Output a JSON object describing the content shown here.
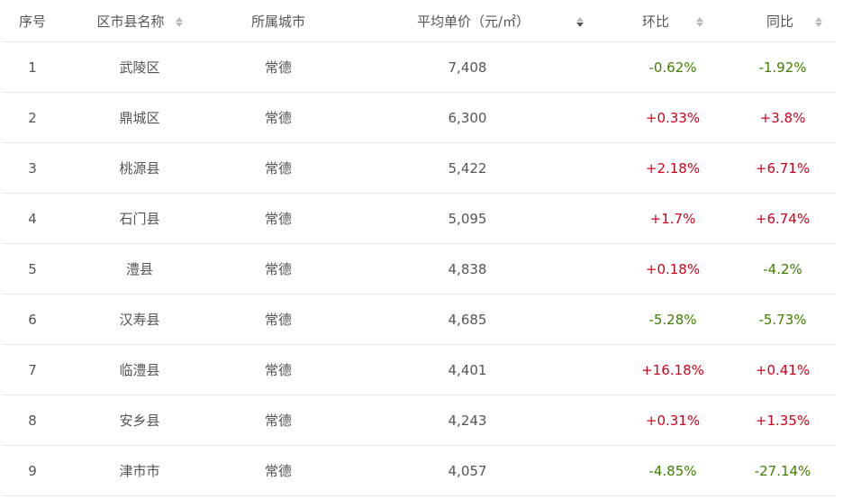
{
  "columns": [
    "序号",
    "区市县名称",
    "所属城市",
    "平均单价（元/㎡）",
    "环比",
    "同比"
  ],
  "sort": {
    "column": "平均单价（元/㎡）",
    "direction": "desc"
  },
  "colors": {
    "positive": "#d0021b",
    "negative": "#3f7f00"
  },
  "rows": [
    {
      "no": "1",
      "district": "武陵区",
      "city": "常德",
      "price": "7,408",
      "mom": "-0.62%",
      "yoy": "-1.92%"
    },
    {
      "no": "2",
      "district": "鼎城区",
      "city": "常德",
      "price": "6,300",
      "mom": "+0.33%",
      "yoy": "+3.8%"
    },
    {
      "no": "3",
      "district": "桃源县",
      "city": "常德",
      "price": "5,422",
      "mom": "+2.18%",
      "yoy": "+6.71%"
    },
    {
      "no": "4",
      "district": "石门县",
      "city": "常德",
      "price": "5,095",
      "mom": "+1.7%",
      "yoy": "+6.74%"
    },
    {
      "no": "5",
      "district": "澧县",
      "city": "常德",
      "price": "4,838",
      "mom": "+0.18%",
      "yoy": "-4.2%"
    },
    {
      "no": "6",
      "district": "汉寿县",
      "city": "常德",
      "price": "4,685",
      "mom": "-5.28%",
      "yoy": "-5.73%"
    },
    {
      "no": "7",
      "district": "临澧县",
      "city": "常德",
      "price": "4,401",
      "mom": "+16.18%",
      "yoy": "+0.41%"
    },
    {
      "no": "8",
      "district": "安乡县",
      "city": "常德",
      "price": "4,243",
      "mom": "+0.31%",
      "yoy": "+1.35%"
    },
    {
      "no": "9",
      "district": "津市市",
      "city": "常德",
      "price": "4,057",
      "mom": "-4.85%",
      "yoy": "-27.14%"
    }
  ]
}
